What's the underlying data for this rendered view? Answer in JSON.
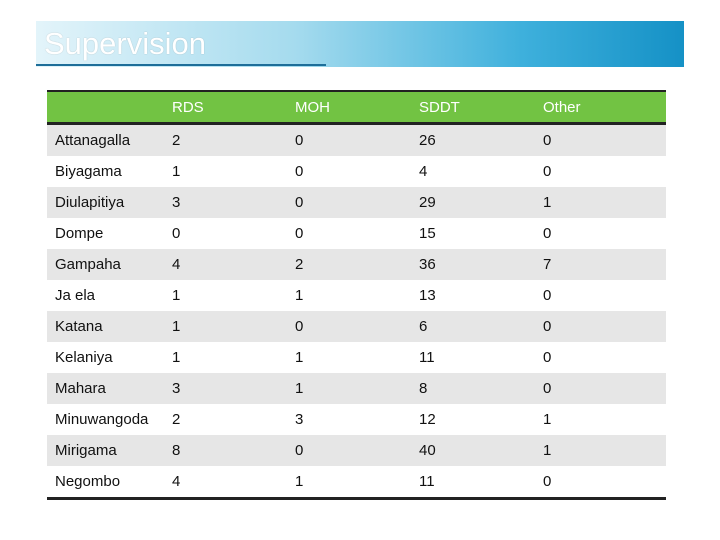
{
  "slide": {
    "title": "Supervision"
  },
  "colors": {
    "header_bg": "#72c343",
    "header_text": "#ffffff",
    "title_gradient_end": "#1591c6",
    "row_alt": "#e6e6e6"
  },
  "table": {
    "headers": [
      "",
      "RDS",
      "MOH",
      "SDDT",
      "Other"
    ],
    "rows": [
      [
        "Attanagalla",
        "2",
        "0",
        "26",
        "0"
      ],
      [
        "Biyagama",
        "1",
        "0",
        "4",
        "0"
      ],
      [
        "Diulapitiya",
        "3",
        "0",
        "29",
        "1"
      ],
      [
        "Dompe",
        "0",
        "0",
        "15",
        "0"
      ],
      [
        "Gampaha",
        "4",
        "2",
        "36",
        "7"
      ],
      [
        "Ja ela",
        "1",
        "1",
        "13",
        "0"
      ],
      [
        "Katana",
        "1",
        "0",
        "6",
        "0"
      ],
      [
        "Kelaniya",
        "1",
        "1",
        "11",
        "0"
      ],
      [
        "Mahara",
        "3",
        "1",
        "8",
        "0"
      ],
      [
        "Minuwangoda",
        "2",
        "3",
        "12",
        "1"
      ],
      [
        "Mirigama",
        "8",
        "0",
        "40",
        "1"
      ],
      [
        "Negombo",
        "4",
        "1",
        "11",
        "0"
      ]
    ]
  }
}
